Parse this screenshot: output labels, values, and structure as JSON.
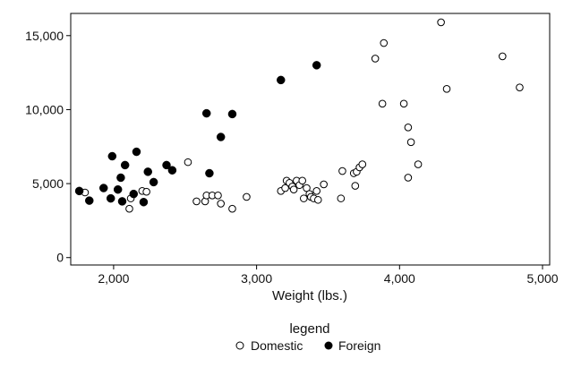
{
  "chart_data": {
    "type": "scatter",
    "title": "",
    "xlabel": "Weight (lbs.)",
    "ylabel": "",
    "xlim": [
      1700,
      5050
    ],
    "ylim": [
      -500,
      16500
    ],
    "x_ticks": [
      2000,
      3000,
      4000,
      5000
    ],
    "x_tick_labels": [
      "2,000",
      "3,000",
      "4,000",
      "5,000"
    ],
    "y_ticks": [
      0,
      5000,
      10000,
      15000
    ],
    "y_tick_labels": [
      "0",
      "5,000",
      "10,000",
      "15,000"
    ],
    "grid": false,
    "legend": {
      "title": "legend",
      "position": "bottom"
    },
    "series": [
      {
        "name": "Domestic",
        "marker": "hollow-circle",
        "color": "#000000",
        "points": [
          [
            1800,
            4400
          ],
          [
            2110,
            3300
          ],
          [
            2120,
            4000
          ],
          [
            2200,
            4500
          ],
          [
            2230,
            4450
          ],
          [
            2520,
            6450
          ],
          [
            2580,
            3800
          ],
          [
            2640,
            3800
          ],
          [
            2650,
            4200
          ],
          [
            2690,
            4200
          ],
          [
            2730,
            4200
          ],
          [
            2750,
            3650
          ],
          [
            2830,
            3300
          ],
          [
            2930,
            4100
          ],
          [
            3170,
            4500
          ],
          [
            3200,
            4700
          ],
          [
            3210,
            5200
          ],
          [
            3230,
            5050
          ],
          [
            3250,
            4800
          ],
          [
            3260,
            4600
          ],
          [
            3280,
            5200
          ],
          [
            3300,
            4900
          ],
          [
            3320,
            5200
          ],
          [
            3330,
            4000
          ],
          [
            3350,
            4700
          ],
          [
            3370,
            4300
          ],
          [
            3380,
            4100
          ],
          [
            3400,
            4000
          ],
          [
            3420,
            4500
          ],
          [
            3430,
            3900
          ],
          [
            3470,
            4950
          ],
          [
            3590,
            4000
          ],
          [
            3600,
            5850
          ],
          [
            3680,
            5700
          ],
          [
            3690,
            4850
          ],
          [
            3700,
            5800
          ],
          [
            3720,
            6100
          ],
          [
            3740,
            6300
          ],
          [
            3830,
            13450
          ],
          [
            3880,
            10400
          ],
          [
            3890,
            14500
          ],
          [
            4030,
            10400
          ],
          [
            4060,
            5400
          ],
          [
            4060,
            8800
          ],
          [
            4080,
            7800
          ],
          [
            4130,
            6300
          ],
          [
            4290,
            15900
          ],
          [
            4330,
            11400
          ],
          [
            4720,
            13600
          ],
          [
            4840,
            11500
          ]
        ]
      },
      {
        "name": "Foreign",
        "marker": "filled-circle",
        "color": "#000000",
        "points": [
          [
            1760,
            4500
          ],
          [
            1830,
            3850
          ],
          [
            1930,
            4700
          ],
          [
            1980,
            4000
          ],
          [
            1990,
            6850
          ],
          [
            2030,
            4600
          ],
          [
            2050,
            5400
          ],
          [
            2060,
            3800
          ],
          [
            2080,
            6250
          ],
          [
            2140,
            4300
          ],
          [
            2160,
            7150
          ],
          [
            2210,
            3750
          ],
          [
            2240,
            5800
          ],
          [
            2280,
            5100
          ],
          [
            2370,
            6250
          ],
          [
            2410,
            5900
          ],
          [
            2650,
            9750
          ],
          [
            2670,
            5700
          ],
          [
            2750,
            8150
          ],
          [
            2830,
            9700
          ],
          [
            3170,
            12000
          ],
          [
            3420,
            13000
          ]
        ]
      }
    ]
  }
}
